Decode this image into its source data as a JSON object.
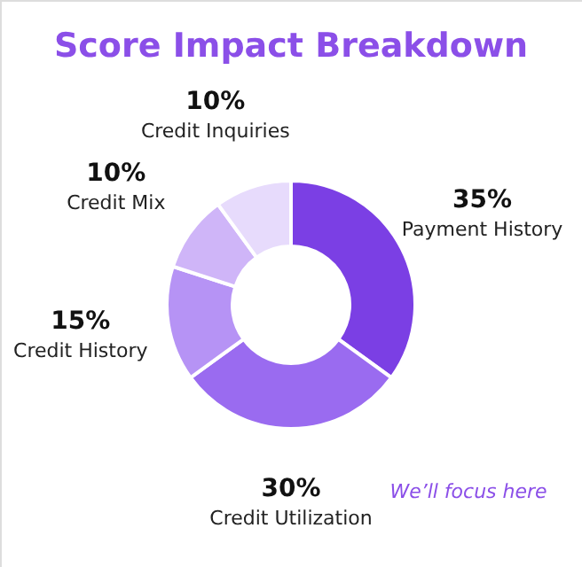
{
  "chart_data": {
    "type": "donut",
    "title": "Score Impact Breakdown",
    "categories": [
      "Payment History",
      "Credit Utilization",
      "Credit History",
      "Credit Mix",
      "Credit Inquiries"
    ],
    "values": [
      35,
      30,
      15,
      10,
      10
    ],
    "value_labels": [
      "35%",
      "30%",
      "15%",
      "10%",
      "10%"
    ],
    "colors": [
      "#7b3fe4",
      "#9a6bf0",
      "#b693f5",
      "#cfb5f8",
      "#e7dbfc"
    ],
    "annotations": [
      "We’ll focus here"
    ],
    "legend": false
  }
}
